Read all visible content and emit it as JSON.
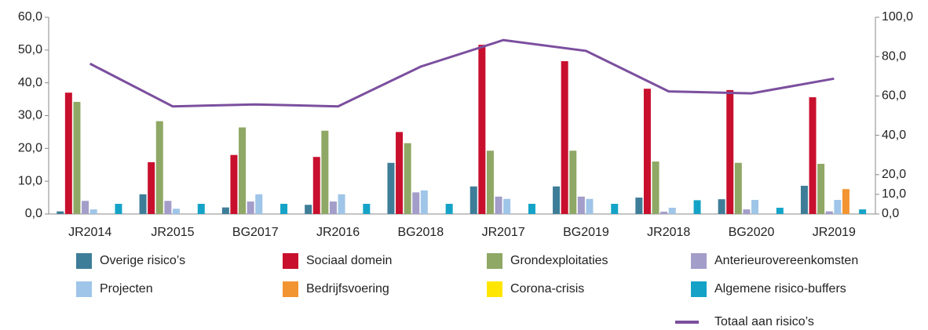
{
  "chart_data": {
    "type": "bar",
    "categories": [
      "JR2014",
      "JR2015",
      "BG2017",
      "JR2016",
      "BG2018",
      "JR2017",
      "BG2019",
      "JR2018",
      "BG2020",
      "JR2019"
    ],
    "series": [
      {
        "name": "Overige risico’s",
        "color": "#3e7d98",
        "values": [
          0.8,
          6.0,
          2.0,
          2.8,
          15.6,
          8.4,
          8.4,
          5.0,
          4.5,
          8.6
        ]
      },
      {
        "name": "Sociaal domein",
        "color": "#c8102e",
        "values": [
          37.0,
          15.8,
          18.0,
          17.4,
          25.0,
          51.6,
          46.6,
          38.2,
          37.8,
          35.6
        ]
      },
      {
        "name": "Grondexploitaties",
        "color": "#8fa865",
        "values": [
          34.2,
          28.3,
          26.4,
          25.4,
          21.6,
          19.3,
          19.3,
          16.0,
          15.6,
          15.3
        ]
      },
      {
        "name": "Anterieurovereenkomsten",
        "color": "#a39dc9",
        "values": [
          4.0,
          4.0,
          3.8,
          3.8,
          6.6,
          5.3,
          5.3,
          0.7,
          1.4,
          0.8
        ]
      },
      {
        "name": "Projecten",
        "color": "#9fc5e8",
        "values": [
          1.4,
          1.6,
          6.0,
          6.0,
          7.2,
          4.6,
          4.6,
          1.9,
          4.3,
          4.3
        ]
      },
      {
        "name": "Bedrijfsvoering",
        "color": "#f39432",
        "values": [
          0,
          0,
          0,
          0,
          0,
          0,
          0,
          0,
          0,
          7.6
        ]
      },
      {
        "name": "Corona-crisis",
        "color": "#ffe600",
        "values": [
          0,
          0,
          0,
          0,
          0,
          0,
          0,
          0,
          0,
          0
        ]
      },
      {
        "name": "Algemene risico-buffers",
        "color": "#14a3c7",
        "values": [
          3.1,
          3.1,
          3.1,
          3.1,
          3.1,
          3.1,
          3.1,
          4.2,
          1.9,
          1.4
        ]
      },
      {
        "name": "Totaal aan risico’s",
        "color": "#7b4f9e",
        "type": "line",
        "axis": "y2",
        "values": [
          76.4,
          54.7,
          55.7,
          54.7,
          74.9,
          88.4,
          82.9,
          62.3,
          61.3,
          68.8
        ]
      }
    ],
    "ylim": [
      0,
      60
    ],
    "yticks": [
      {
        "value": 0,
        "label": "0,0"
      },
      {
        "value": 10,
        "label": "10,0"
      },
      {
        "value": 20,
        "label": "20,0"
      },
      {
        "value": 30,
        "label": "30,0"
      },
      {
        "value": 40,
        "label": "40,0"
      },
      {
        "value": 50,
        "label": "50,0"
      },
      {
        "value": 60,
        "label": "60,0"
      }
    ],
    "y2lim": [
      0,
      100
    ],
    "y2ticks": [
      {
        "value": 0,
        "label": "0,0"
      },
      {
        "value": 10,
        "label": "10,0"
      },
      {
        "value": 20,
        "label": "20,0"
      },
      {
        "value": 40,
        "label": "40,0"
      },
      {
        "value": 60,
        "label": "60,0"
      },
      {
        "value": 80,
        "label": "80,0"
      },
      {
        "value": 100,
        "label": "100,0"
      }
    ],
    "grid": false
  }
}
